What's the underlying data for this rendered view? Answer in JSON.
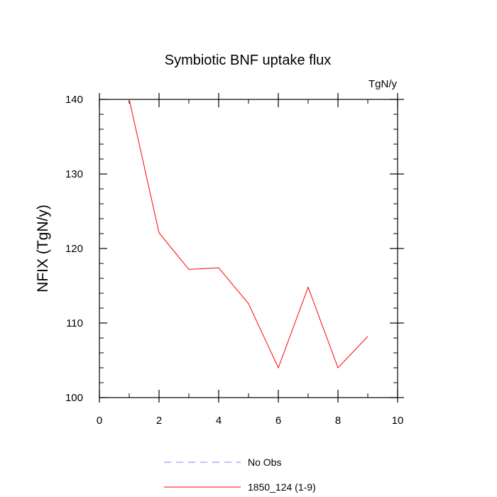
{
  "chart_data": {
    "type": "line",
    "title": "Symbiotic BNF uptake flux",
    "units_label": "TgN/y",
    "xlabel": "",
    "ylabel": "NFIX  (TgN/y)",
    "xlim": [
      0,
      10
    ],
    "ylim": [
      100,
      140
    ],
    "x_ticks": [
      0,
      2,
      4,
      6,
      8,
      10
    ],
    "y_ticks": [
      100,
      110,
      120,
      130,
      140
    ],
    "x_minor_step": 1,
    "y_minor_step": 2,
    "grid": false,
    "legend_position": "bottom-center",
    "series": [
      {
        "name": "No Obs",
        "color": "#8080ff",
        "style": "dashed",
        "x": [],
        "y": []
      },
      {
        "name": "1850_124 (1-9)",
        "color": "#ff0000",
        "style": "solid",
        "x": [
          1,
          2,
          3,
          4,
          5,
          6,
          7,
          8,
          9
        ],
        "y": [
          140,
          122.1,
          117.2,
          117.4,
          112.6,
          104.0,
          114.8,
          104.0,
          108.2
        ]
      }
    ]
  }
}
